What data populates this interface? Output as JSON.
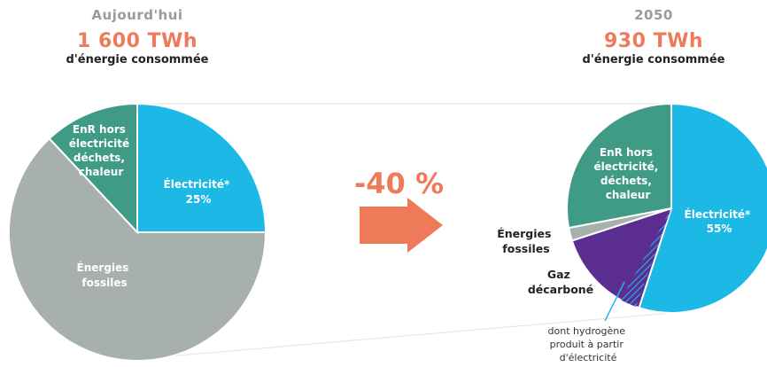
{
  "chart_data": [
    {
      "type": "pie",
      "period": "Aujourd'hui",
      "total": "1 600 TWh",
      "subtitle": "d'énergie consommée",
      "slices": [
        {
          "label": "Électricité*",
          "value": 25,
          "value_label": "25%",
          "color": "#1cb8e6"
        },
        {
          "label": "Énergies fossiles",
          "value": 63,
          "value_label": "",
          "color": "#a7b0ad"
        },
        {
          "label": "EnR hors électricité déchets, chaleur",
          "value": 12,
          "value_label": "",
          "color": "#3f9a86"
        }
      ]
    },
    {
      "type": "pie",
      "period": "2050",
      "total": "930 TWh",
      "subtitle": "d'énergie consommée",
      "slices": [
        {
          "label": "Électricité*",
          "value": 55,
          "value_label": "55%",
          "color": "#1cb8e6"
        },
        {
          "label": "Gaz décarboné",
          "value": 15,
          "value_label": "",
          "color": "#5c2d91"
        },
        {
          "label": "Énergies fossiles",
          "value": 2,
          "value_label": "",
          "color": "#a7b0ad"
        },
        {
          "label": "EnR hors électricité, déchets, chaleur",
          "value": 28,
          "value_label": "",
          "color": "#3f9a86"
        }
      ],
      "annotation": "dont hydrogène produit à partir d'électricité"
    }
  ],
  "reduction": {
    "label": "-40 %",
    "color": "#ef7a5a",
    "icon": "arrow-right-icon"
  },
  "labels": {
    "left": {
      "elec_l1": "Électricité*",
      "elec_l2": "25%",
      "enr_l1": "EnR hors",
      "enr_l2": "électricité",
      "enr_l3": "déchets,",
      "enr_l4": "chaleur",
      "fos_l1": "Énergies",
      "fos_l2": "fossiles"
    },
    "right": {
      "elec_l1": "Électricité*",
      "elec_l2": "55%",
      "enr_l1": "EnR hors",
      "enr_l2": "électricité,",
      "enr_l3": "déchets,",
      "enr_l4": "chaleur",
      "fos_l1": "Énergies",
      "fos_l2": "fossiles",
      "gaz_l1": "Gaz",
      "gaz_l2": "décarboné",
      "h2_l1": "dont hydrogène",
      "h2_l2": "produit à partir",
      "h2_l3": "d'électricité"
    }
  }
}
